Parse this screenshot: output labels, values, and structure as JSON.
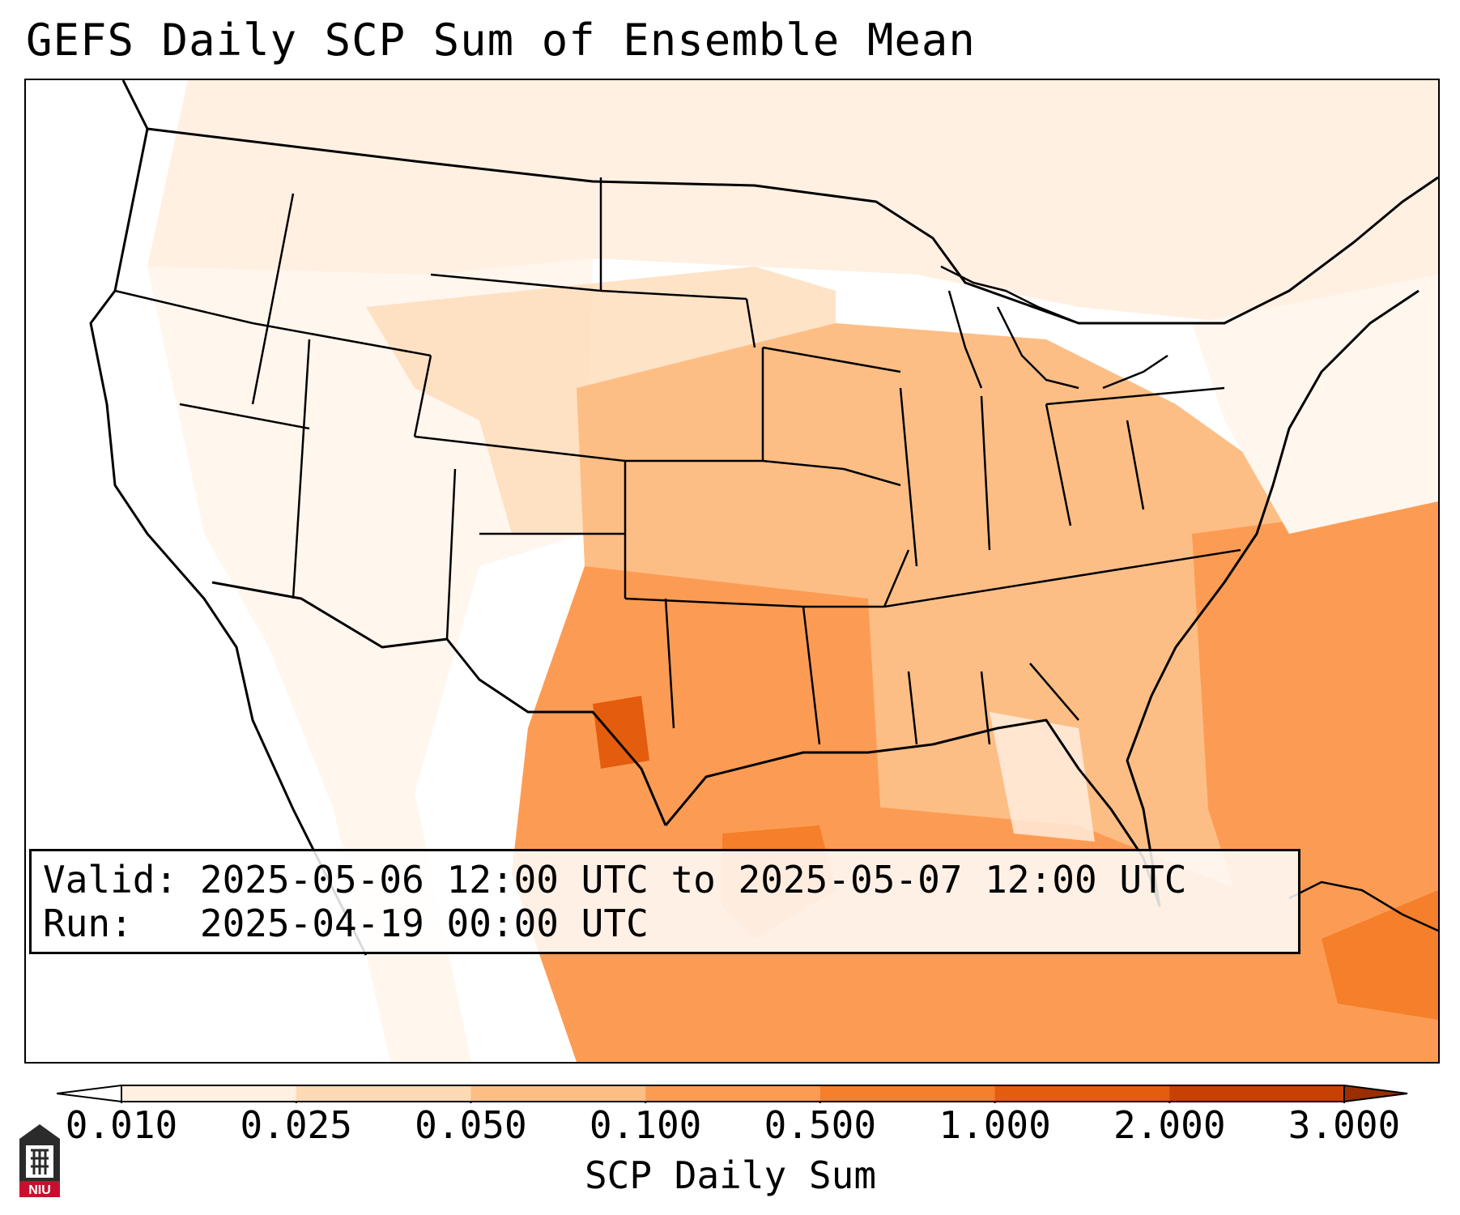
{
  "title": "GEFS Daily SCP Sum of Ensemble Mean",
  "info": {
    "valid_label": "Valid:",
    "valid_value": "2025-05-06 12:00 UTC to 2025-05-07 12:00 UTC",
    "run_label": "Run:",
    "run_value": "2025-04-19 00:00 UTC"
  },
  "colorbar": {
    "label": "SCP Daily Sum",
    "ticks": [
      "0.010",
      "0.025",
      "0.050",
      "0.100",
      "0.500",
      "1.000",
      "2.000",
      "3.000"
    ],
    "colors": [
      "#fff0e2",
      "#fed9b4",
      "#fdbe86",
      "#fc9c54",
      "#f57f2a",
      "#e45c0e",
      "#c74104"
    ],
    "under_color": "#ffffff",
    "over_color": "#9a2e03"
  },
  "logo": {
    "text": "NIU",
    "icon": "niu-logo-icon",
    "color": "#c8102e"
  }
}
